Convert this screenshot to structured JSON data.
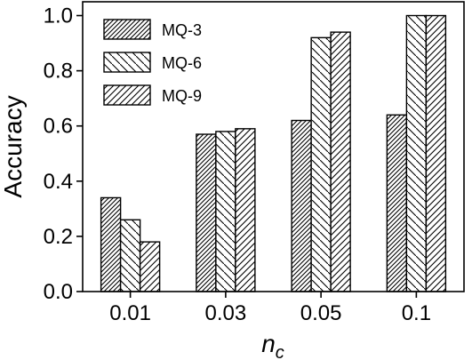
{
  "chart_data": {
    "type": "bar",
    "categories": [
      "0.01",
      "0.03",
      "0.05",
      "0.1"
    ],
    "series": [
      {
        "name": "MQ-3",
        "values": [
          0.34,
          0.57,
          0.62,
          0.64
        ],
        "hatch": "diag-up-dense"
      },
      {
        "name": "MQ-6",
        "values": [
          0.26,
          0.58,
          0.92,
          1.0
        ],
        "hatch": "diag-down"
      },
      {
        "name": "MQ-9",
        "values": [
          0.18,
          0.59,
          0.94,
          1.0
        ],
        "hatch": "diag-up"
      }
    ],
    "xlabel_main": "n",
    "xlabel_sub": "c",
    "ylabel": "Accuracy",
    "ylim": [
      0,
      1.05
    ],
    "yticks": [
      "0.0",
      "0.2",
      "0.4",
      "0.6",
      "0.8",
      "1.0"
    ],
    "legend_position": "top-left",
    "colors": {
      "stroke": "#000000",
      "fill": "#ffffff"
    }
  }
}
